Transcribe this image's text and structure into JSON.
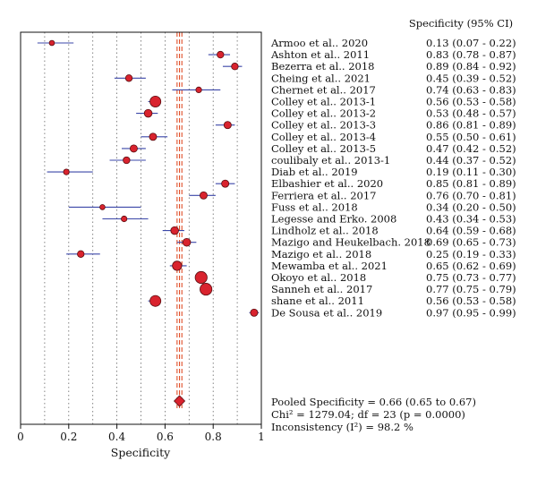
{
  "chart_data": {
    "type": "forest",
    "xlabel": "Specificity",
    "xlim": [
      0,
      1
    ],
    "xticks": [
      "0",
      "0.2",
      "0.4",
      "0.6",
      "0.8",
      "1"
    ],
    "xtick_values": [
      0,
      0.2,
      0.4,
      0.6,
      0.8,
      1
    ],
    "column_header": "Specificity (95% CI)",
    "colors": {
      "marker": "#d9232e",
      "ci_line": "#3b47a8",
      "pooled_line": "#e0502a",
      "grid": "#666666"
    },
    "studies": [
      {
        "name": "Armoo et al.. 2020",
        "est": 0.13,
        "lo": 0.07,
        "hi": 0.22,
        "ci_text": "0.13 (0.07 - 0.22)",
        "weight": 1
      },
      {
        "name": "Ashton et al.. 2011",
        "est": 0.83,
        "lo": 0.78,
        "hi": 0.87,
        "ci_text": "0.83 (0.78 - 0.87)",
        "weight": 1.3
      },
      {
        "name": "Bezerra et al.. 2018",
        "est": 0.89,
        "lo": 0.84,
        "hi": 0.92,
        "ci_text": "0.89 (0.84 - 0.92)",
        "weight": 1.3
      },
      {
        "name": "Cheing et al.. 2021",
        "est": 0.45,
        "lo": 0.39,
        "hi": 0.52,
        "ci_text": "0.45 (0.39 - 0.52)",
        "weight": 1.3
      },
      {
        "name": "Chernet et al.. 2017",
        "est": 0.74,
        "lo": 0.63,
        "hi": 0.83,
        "ci_text": "0.74 (0.63 - 0.83)",
        "weight": 1.1
      },
      {
        "name": "Colley et al.. 2013-1",
        "est": 0.56,
        "lo": 0.53,
        "hi": 0.58,
        "ci_text": "0.56 (0.53 - 0.58)",
        "weight": 2.1
      },
      {
        "name": "Colley et al.. 2013-2",
        "est": 0.53,
        "lo": 0.48,
        "hi": 0.57,
        "ci_text": "0.53 (0.48 - 0.57)",
        "weight": 1.5
      },
      {
        "name": "Colley et al.. 2013-3",
        "est": 0.86,
        "lo": 0.81,
        "hi": 0.89,
        "ci_text": "0.86 (0.81 - 0.89)",
        "weight": 1.4
      },
      {
        "name": "Colley et al.. 2013-4",
        "est": 0.55,
        "lo": 0.5,
        "hi": 0.61,
        "ci_text": "0.55 (0.50 - 0.61)",
        "weight": 1.4
      },
      {
        "name": "Colley et al.. 2013-5",
        "est": 0.47,
        "lo": 0.42,
        "hi": 0.52,
        "ci_text": "0.47 (0.42 - 0.52)",
        "weight": 1.4
      },
      {
        "name": "coulibaly et al.. 2013-1",
        "est": 0.44,
        "lo": 0.37,
        "hi": 0.52,
        "ci_text": "0.44 (0.37 - 0.52)",
        "weight": 1.3
      },
      {
        "name": "Diab et al.. 2019",
        "est": 0.19,
        "lo": 0.11,
        "hi": 0.3,
        "ci_text": "0.19 (0.11 - 0.30)",
        "weight": 1.1
      },
      {
        "name": "Elbashier et al.. 2020",
        "est": 0.85,
        "lo": 0.81,
        "hi": 0.89,
        "ci_text": "0.85 (0.81 - 0.89)",
        "weight": 1.4
      },
      {
        "name": "Ferriera et al.. 2017",
        "est": 0.76,
        "lo": 0.7,
        "hi": 0.81,
        "ci_text": "0.76 (0.70 - 0.81)",
        "weight": 1.4
      },
      {
        "name": "Fuss et al.. 2018",
        "est": 0.34,
        "lo": 0.2,
        "hi": 0.5,
        "ci_text": "0.34 (0.20 - 0.50)",
        "weight": 1
      },
      {
        "name": "Legesse and Erko. 2008",
        "est": 0.43,
        "lo": 0.34,
        "hi": 0.53,
        "ci_text": "0.43 (0.34 - 0.53)",
        "weight": 1.1
      },
      {
        "name": "Lindholz et al.. 2018",
        "est": 0.64,
        "lo": 0.59,
        "hi": 0.68,
        "ci_text": "0.64 (0.59 - 0.68)",
        "weight": 1.5
      },
      {
        "name": "Mazigo and Heukelbach. 2018",
        "est": 0.69,
        "lo": 0.65,
        "hi": 0.73,
        "ci_text": "0.69 (0.65 - 0.73)",
        "weight": 1.5
      },
      {
        "name": "Mazigo et al.. 2018",
        "est": 0.25,
        "lo": 0.19,
        "hi": 0.33,
        "ci_text": "0.25 (0.19 - 0.33)",
        "weight": 1.3
      },
      {
        "name": "Mewamba et al.. 2021",
        "est": 0.65,
        "lo": 0.62,
        "hi": 0.69,
        "ci_text": "0.65 (0.62 - 0.69)",
        "weight": 1.8
      },
      {
        "name": "Okoyo et al.. 2018",
        "est": 0.75,
        "lo": 0.73,
        "hi": 0.77,
        "ci_text": "0.75 (0.73 - 0.77)",
        "weight": 2.3
      },
      {
        "name": "Sanneh et al.. 2017",
        "est": 0.77,
        "lo": 0.75,
        "hi": 0.79,
        "ci_text": "0.77 (0.75 - 0.79)",
        "weight": 2.3
      },
      {
        "name": "shane et al.. 2011",
        "est": 0.56,
        "lo": 0.53,
        "hi": 0.58,
        "ci_text": "0.56 (0.53 - 0.58)",
        "weight": 2.1
      },
      {
        "name": "De Sousa et al.. 2019",
        "est": 0.97,
        "lo": 0.95,
        "hi": 0.99,
        "ci_text": "0.97 (0.95 - 0.99)",
        "weight": 1.4
      }
    ],
    "pooled": {
      "est": 0.66,
      "lo": 0.65,
      "hi": 0.67
    },
    "summary_lines": [
      "Pooled Specificity = 0.66 (0.65 to 0.67)",
      "Chi² = 1279.04; df = 23 (p = 0.0000)",
      "Inconsistency (I²) = 98.2 %"
    ]
  }
}
